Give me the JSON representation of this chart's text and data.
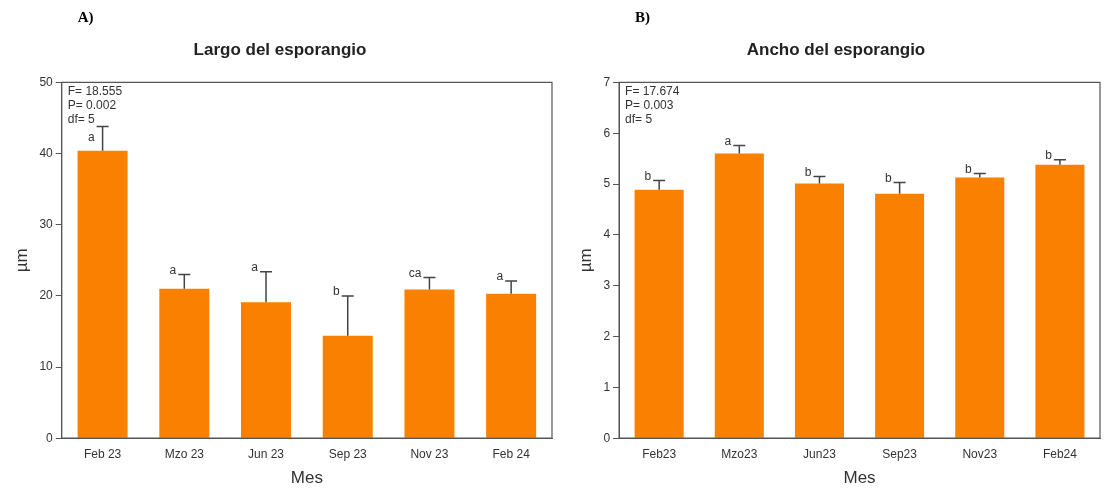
{
  "chart_data": [
    {
      "type": "bar",
      "title": "Largo del esporangio",
      "xlabel": "Mes",
      "ylabel": "µm",
      "categories": [
        "Feb 23",
        "Mzo 23",
        "Jun 23",
        "Sep 23",
        "Nov 23",
        "Feb 24"
      ],
      "values": [
        40.4,
        21.0,
        19.1,
        14.4,
        20.9,
        20.3
      ],
      "errors": [
        3.4,
        2.0,
        4.3,
        5.6,
        1.7,
        1.8
      ],
      "color": "#f98000",
      "ylim": [
        0,
        50
      ],
      "yticks": [
        0,
        10,
        20,
        30,
        40,
        50
      ],
      "grid": false,
      "legend": false,
      "annotations": [
        "A)",
        "F= 18.555\nP= 0.002\ndf= 5",
        {
          "text": "a",
          "x": "Feb 23",
          "y": 41.6
        },
        {
          "text": "a",
          "x": "Mzo 23",
          "y": 23.0
        },
        {
          "text": "a",
          "x": "Jun 23",
          "y": 23.4
        },
        {
          "text": "b",
          "x": "Sep 23",
          "y": 20.0
        },
        {
          "text": "ca",
          "x": "Nov 23",
          "y": 22.6
        },
        {
          "text": "a",
          "x": "Feb 24",
          "y": 22.1
        }
      ]
    },
    {
      "type": "bar",
      "title": "Ancho del esporangio",
      "xlabel": "Mes",
      "ylabel": "µm",
      "categories": [
        "Feb23",
        "Mzo23",
        "Jun23",
        "Sep23",
        "Nov23",
        "Feb24"
      ],
      "values": [
        4.89,
        5.6,
        5.01,
        4.81,
        5.13,
        5.38
      ],
      "errors": [
        0.18,
        0.16,
        0.14,
        0.22,
        0.08,
        0.1
      ],
      "color": "#f98000",
      "ylim": [
        0,
        7
      ],
      "yticks": [
        0,
        1,
        2,
        3,
        4,
        5,
        6,
        7
      ],
      "grid": false,
      "legend": false,
      "annotations": [
        "B)",
        "F= 17.674\nP= 0.003\ndf= 5",
        {
          "text": "b",
          "x": "Feb23",
          "y": 5.07
        },
        {
          "text": "a",
          "x": "Mzo23",
          "y": 5.76
        },
        {
          "text": "b",
          "x": "Jun23",
          "y": 5.15
        },
        {
          "text": "b",
          "x": "Sep23",
          "y": 5.03
        },
        {
          "text": "b",
          "x": "Nov23",
          "y": 5.21
        },
        {
          "text": "b",
          "x": "Feb24",
          "y": 5.48
        }
      ]
    }
  ]
}
